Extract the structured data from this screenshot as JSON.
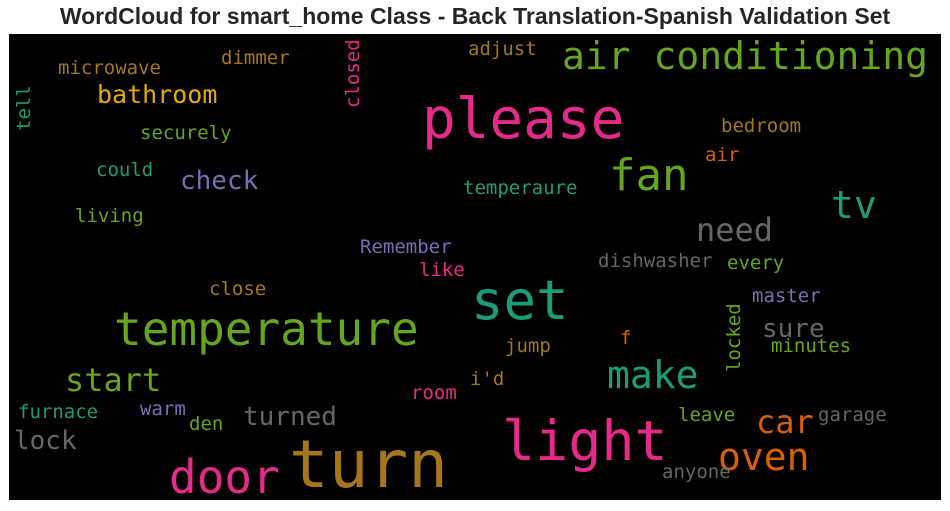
{
  "title": "WordCloud for smart_home Class - Back Translation-Spanish Validation Set",
  "chart_data": {
    "type": "wordcloud",
    "background": "#000000",
    "colormap_colors": {
      "magenta": "#e7298a",
      "green": "#66a61e",
      "teal": "#1b9e77",
      "gold": "#a6761d",
      "orange": "#d95f02",
      "purple": "#7570b3",
      "yellow": "#e6ab02",
      "gray": "#666666"
    },
    "words": [
      {
        "text": "turn",
        "color": "#a6761d"
      },
      {
        "text": "please",
        "color": "#e7298a"
      },
      {
        "text": "light",
        "color": "#e7298a"
      },
      {
        "text": "set",
        "color": "#1b9e77"
      },
      {
        "text": "temperature",
        "color": "#66a61e"
      },
      {
        "text": "air conditioning",
        "color": "#66a61e"
      },
      {
        "text": "door",
        "color": "#e7298a"
      },
      {
        "text": "fan",
        "color": "#66a61e"
      },
      {
        "text": "make",
        "color": "#1b9e77"
      },
      {
        "text": "oven",
        "color": "#d95f02"
      },
      {
        "text": "start",
        "color": "#66a61e"
      },
      {
        "text": "tv",
        "color": "#1b9e77"
      },
      {
        "text": "need",
        "color": "#666666"
      },
      {
        "text": "car",
        "color": "#d95f02"
      },
      {
        "text": "turned",
        "color": "#666666"
      },
      {
        "text": "check",
        "color": "#7570b3"
      },
      {
        "text": "bathroom",
        "color": "#e6ab02"
      },
      {
        "text": "lock",
        "color": "#666666"
      },
      {
        "text": "sure",
        "color": "#666666"
      },
      {
        "text": "temperaure",
        "color": "#1b9e77"
      },
      {
        "text": "securely",
        "color": "#66a61e"
      },
      {
        "text": "microwave",
        "color": "#a6761d"
      },
      {
        "text": "dimmer",
        "color": "#a6761d"
      },
      {
        "text": "adjust",
        "color": "#a6761d"
      },
      {
        "text": "closed",
        "color": "#e7298a"
      },
      {
        "text": "tell",
        "color": "#1b9e77"
      },
      {
        "text": "bedroom",
        "color": "#a6761d"
      },
      {
        "text": "air",
        "color": "#d95f02"
      },
      {
        "text": "could",
        "color": "#1b9e77"
      },
      {
        "text": "living",
        "color": "#66a61e"
      },
      {
        "text": "Remember",
        "color": "#7570b3"
      },
      {
        "text": "like",
        "color": "#e7298a"
      },
      {
        "text": "dishwasher",
        "color": "#666666"
      },
      {
        "text": "every",
        "color": "#66a61e"
      },
      {
        "text": "close",
        "color": "#a6761d"
      },
      {
        "text": "master",
        "color": "#7570b3"
      },
      {
        "text": "locked",
        "color": "#66a61e"
      },
      {
        "text": "minutes",
        "color": "#66a61e"
      },
      {
        "text": "f",
        "color": "#d95f02"
      },
      {
        "text": "jump",
        "color": "#a6761d"
      },
      {
        "text": "i'd",
        "color": "#a6761d"
      },
      {
        "text": "room",
        "color": "#e7298a"
      },
      {
        "text": "furnace",
        "color": "#1b9e77"
      },
      {
        "text": "warm",
        "color": "#7570b3"
      },
      {
        "text": "den",
        "color": "#66a61e"
      },
      {
        "text": "leave",
        "color": "#66a61e"
      },
      {
        "text": "garage",
        "color": "#666666"
      },
      {
        "text": "anyone",
        "color": "#666666"
      }
    ]
  }
}
